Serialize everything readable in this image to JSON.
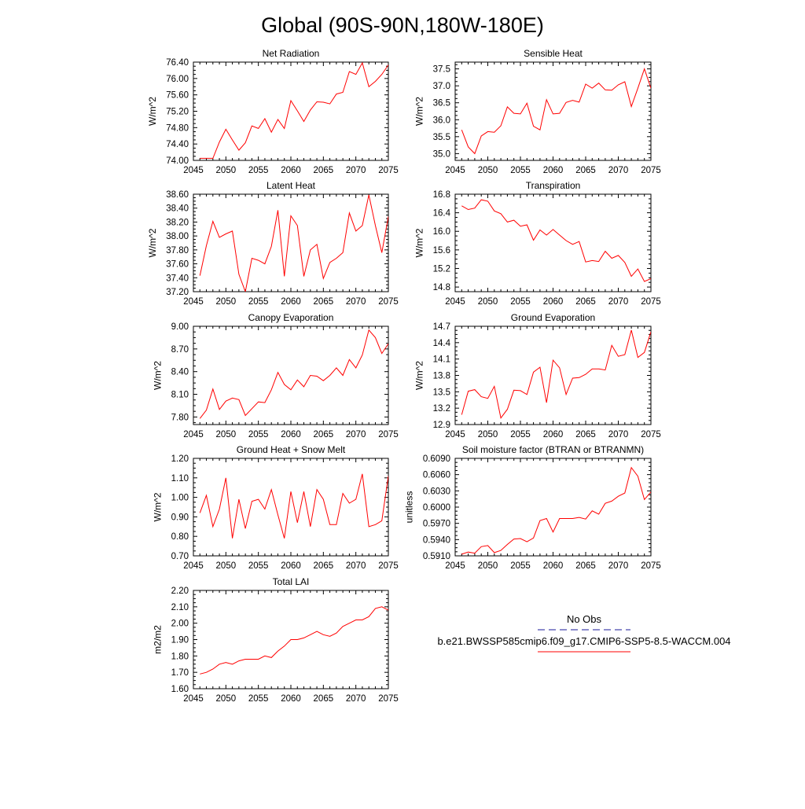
{
  "figure": {
    "title": "Global (90S-90N,180W-180E)"
  },
  "legend": {
    "obs_label": "No Obs",
    "obs_color": "#1a1a9a",
    "model_label": "b.e21.BWSSP585cmip6.f09_g17.CMIP6-SSP5-8.5-WACCM.004",
    "model_color": "#ff0000"
  },
  "chart_data": [
    {
      "type": "line",
      "title": "Net Radiation",
      "ylabel": "W/m^2",
      "xlim": [
        2045,
        2075
      ],
      "ylim": [
        74.0,
        76.4
      ],
      "xticks": [
        2045,
        2050,
        2055,
        2060,
        2065,
        2070,
        2075
      ],
      "yticks": [
        "74.00",
        "74.40",
        "74.80",
        "75.20",
        "75.60",
        "76.00",
        "76.40"
      ],
      "x": [
        2046,
        2047,
        2048,
        2049,
        2050,
        2051,
        2052,
        2053,
        2054,
        2055,
        2056,
        2057,
        2058,
        2059,
        2060,
        2061,
        2062,
        2063,
        2064,
        2065,
        2066,
        2067,
        2068,
        2069,
        2070,
        2071,
        2072,
        2073,
        2074,
        2075
      ],
      "series": [
        {
          "name": "b.e21.BWSSP585cmip6.f09_g17.CMIP6-SSP5-8.5-WACCM.004",
          "values": [
            74.05,
            74.05,
            74.05,
            74.45,
            74.76,
            74.5,
            74.25,
            74.43,
            74.84,
            74.78,
            75.02,
            74.69,
            75.0,
            74.78,
            75.46,
            75.21,
            74.95,
            75.23,
            75.43,
            75.42,
            75.38,
            75.62,
            75.66,
            76.17,
            76.1,
            76.38,
            75.8,
            75.93,
            76.1,
            76.33
          ]
        }
      ]
    },
    {
      "type": "line",
      "title": "Sensible Heat",
      "ylabel": "W/m^2",
      "xlim": [
        2045,
        2075
      ],
      "ylim": [
        34.8,
        37.7
      ],
      "xticks": [
        2045,
        2050,
        2055,
        2060,
        2065,
        2070,
        2075
      ],
      "yticks": [
        "35.0",
        "35.5",
        "36.0",
        "36.5",
        "37.0",
        "37.5"
      ],
      "x": [
        2046,
        2047,
        2048,
        2049,
        2050,
        2051,
        2052,
        2053,
        2054,
        2055,
        2056,
        2057,
        2058,
        2059,
        2060,
        2061,
        2062,
        2063,
        2064,
        2065,
        2066,
        2067,
        2068,
        2069,
        2070,
        2071,
        2072,
        2073,
        2074,
        2075
      ],
      "series": [
        {
          "name": "b.e21.BWSSP585cmip6.f09_g17.CMIP6-SSP5-8.5-WACCM.004",
          "values": [
            35.7,
            35.2,
            35.0,
            35.52,
            35.65,
            35.63,
            35.82,
            36.38,
            36.19,
            36.17,
            36.49,
            35.81,
            35.7,
            36.59,
            36.17,
            36.19,
            36.51,
            36.57,
            36.52,
            37.05,
            36.93,
            37.08,
            36.88,
            36.87,
            37.03,
            37.12,
            36.39,
            36.93,
            37.5,
            36.93
          ]
        }
      ]
    },
    {
      "type": "line",
      "title": "Latent Heat",
      "ylabel": "W/m^2",
      "xlim": [
        2045,
        2075
      ],
      "ylim": [
        37.2,
        38.6
      ],
      "xticks": [
        2045,
        2050,
        2055,
        2060,
        2065,
        2070,
        2075
      ],
      "yticks": [
        "37.20",
        "37.40",
        "37.60",
        "37.80",
        "38.00",
        "38.20",
        "38.40",
        "38.60"
      ],
      "x": [
        2046,
        2047,
        2048,
        2049,
        2050,
        2051,
        2052,
        2053,
        2054,
        2055,
        2056,
        2057,
        2058,
        2059,
        2060,
        2061,
        2062,
        2063,
        2064,
        2065,
        2066,
        2067,
        2068,
        2069,
        2070,
        2071,
        2072,
        2073,
        2074,
        2075
      ],
      "series": [
        {
          "name": "b.e21.BWSSP585cmip6.f09_g17.CMIP6-SSP5-8.5-WACCM.004",
          "values": [
            37.43,
            37.86,
            38.21,
            37.98,
            38.03,
            38.07,
            37.45,
            37.2,
            37.68,
            37.65,
            37.6,
            37.85,
            38.37,
            37.42,
            38.29,
            38.15,
            37.42,
            37.8,
            37.88,
            37.39,
            37.62,
            37.68,
            37.76,
            38.33,
            38.07,
            38.15,
            38.59,
            38.15,
            37.76,
            38.28
          ]
        }
      ]
    },
    {
      "type": "line",
      "title": "Transpiration",
      "ylabel": "W/m^2",
      "xlim": [
        2045,
        2075
      ],
      "ylim": [
        14.7,
        16.8
      ],
      "xticks": [
        2045,
        2050,
        2055,
        2060,
        2065,
        2070,
        2075
      ],
      "yticks": [
        "14.8",
        "15.2",
        "15.6",
        "16.0",
        "16.4",
        "16.8"
      ],
      "x": [
        2046,
        2047,
        2048,
        2049,
        2050,
        2051,
        2052,
        2053,
        2054,
        2055,
        2056,
        2057,
        2058,
        2059,
        2060,
        2061,
        2062,
        2063,
        2064,
        2065,
        2066,
        2067,
        2068,
        2069,
        2070,
        2071,
        2072,
        2073,
        2074,
        2075
      ],
      "series": [
        {
          "name": "b.e21.BWSSP585cmip6.f09_g17.CMIP6-SSP5-8.5-WACCM.004",
          "values": [
            16.55,
            16.47,
            16.5,
            16.68,
            16.65,
            16.44,
            16.38,
            16.2,
            16.24,
            16.11,
            16.14,
            15.81,
            16.03,
            15.92,
            16.04,
            15.92,
            15.8,
            15.72,
            15.78,
            15.34,
            15.37,
            15.35,
            15.57,
            15.42,
            15.48,
            15.33,
            15.03,
            15.19,
            14.92,
            14.98
          ]
        }
      ]
    },
    {
      "type": "line",
      "title": "Canopy Evaporation",
      "ylabel": "W/m^2",
      "xlim": [
        2045,
        2075
      ],
      "ylim": [
        7.7,
        9.0
      ],
      "xticks": [
        2045,
        2050,
        2055,
        2060,
        2065,
        2070,
        2075
      ],
      "yticks": [
        "7.80",
        "8.10",
        "8.40",
        "8.70",
        "9.00"
      ],
      "x": [
        2046,
        2047,
        2048,
        2049,
        2050,
        2051,
        2052,
        2053,
        2054,
        2055,
        2056,
        2057,
        2058,
        2059,
        2060,
        2061,
        2062,
        2063,
        2064,
        2065,
        2066,
        2067,
        2068,
        2069,
        2070,
        2071,
        2072,
        2073,
        2074,
        2075
      ],
      "series": [
        {
          "name": "b.e21.BWSSP585cmip6.f09_g17.CMIP6-SSP5-8.5-WACCM.004",
          "values": [
            7.78,
            7.89,
            8.17,
            7.9,
            8.01,
            8.05,
            8.03,
            7.82,
            7.91,
            8.0,
            7.99,
            8.16,
            8.39,
            8.23,
            8.16,
            8.29,
            8.2,
            8.35,
            8.34,
            8.28,
            8.35,
            8.45,
            8.35,
            8.56,
            8.45,
            8.62,
            8.95,
            8.85,
            8.64,
            8.77
          ]
        }
      ]
    },
    {
      "type": "line",
      "title": "Ground Evaporation",
      "ylabel": "W/m^2",
      "xlim": [
        2045,
        2075
      ],
      "ylim": [
        12.9,
        14.7
      ],
      "xticks": [
        2045,
        2050,
        2055,
        2060,
        2065,
        2070,
        2075
      ],
      "yticks": [
        "12.9",
        "13.2",
        "13.5",
        "13.8",
        "14.1",
        "14.4",
        "14.7"
      ],
      "x": [
        2046,
        2047,
        2048,
        2049,
        2050,
        2051,
        2052,
        2053,
        2054,
        2055,
        2056,
        2057,
        2058,
        2059,
        2060,
        2061,
        2062,
        2063,
        2064,
        2065,
        2066,
        2067,
        2068,
        2069,
        2070,
        2071,
        2072,
        2073,
        2074,
        2075
      ],
      "series": [
        {
          "name": "b.e21.BWSSP585cmip6.f09_g17.CMIP6-SSP5-8.5-WACCM.004",
          "values": [
            13.08,
            13.51,
            13.54,
            13.41,
            13.38,
            13.6,
            13.02,
            13.18,
            13.53,
            13.52,
            13.45,
            13.86,
            13.95,
            13.3,
            14.08,
            13.94,
            13.45,
            13.75,
            13.76,
            13.82,
            13.92,
            13.92,
            13.9,
            14.35,
            14.15,
            14.18,
            14.63,
            14.13,
            14.22,
            14.6
          ]
        }
      ]
    },
    {
      "type": "line",
      "title": "Ground Heat + Snow Melt",
      "ylabel": "W/m^2",
      "xlim": [
        2045,
        2075
      ],
      "ylim": [
        0.7,
        1.2
      ],
      "xticks": [
        2045,
        2050,
        2055,
        2060,
        2065,
        2070,
        2075
      ],
      "yticks": [
        "0.70",
        "0.80",
        "0.90",
        "1.00",
        "1.10",
        "1.20"
      ],
      "x": [
        2046,
        2047,
        2048,
        2049,
        2050,
        2051,
        2052,
        2053,
        2054,
        2055,
        2056,
        2057,
        2058,
        2059,
        2060,
        2061,
        2062,
        2063,
        2064,
        2065,
        2066,
        2067,
        2068,
        2069,
        2070,
        2071,
        2072,
        2073,
        2074,
        2075
      ],
      "series": [
        {
          "name": "b.e21.BWSSP585cmip6.f09_g17.CMIP6-SSP5-8.5-WACCM.004",
          "values": [
            0.92,
            1.01,
            0.85,
            0.94,
            1.1,
            0.79,
            0.99,
            0.84,
            0.98,
            0.99,
            0.94,
            1.04,
            0.91,
            0.79,
            1.03,
            0.87,
            1.03,
            0.85,
            1.04,
            0.99,
            0.86,
            0.86,
            1.02,
            0.97,
            0.99,
            1.12,
            0.85,
            0.86,
            0.88,
            1.11
          ]
        }
      ]
    },
    {
      "type": "line",
      "title": "Soil moisture factor (BTRAN or BTRANMN)",
      "ylabel": "unitless",
      "xlim": [
        2045,
        2075
      ],
      "ylim": [
        0.591,
        0.609
      ],
      "xticks": [
        2045,
        2050,
        2055,
        2060,
        2065,
        2070,
        2075
      ],
      "yticks": [
        "0.5910",
        "0.5940",
        "0.5970",
        "0.6000",
        "0.6030",
        "0.6060",
        "0.6090"
      ],
      "x": [
        2046,
        2047,
        2048,
        2049,
        2050,
        2051,
        2052,
        2053,
        2054,
        2055,
        2056,
        2057,
        2058,
        2059,
        2060,
        2061,
        2062,
        2063,
        2064,
        2065,
        2066,
        2067,
        2068,
        2069,
        2070,
        2071,
        2072,
        2073,
        2074,
        2075
      ],
      "series": [
        {
          "name": "b.e21.BWSSP585cmip6.f09_g17.CMIP6-SSP5-8.5-WACCM.004",
          "values": [
            0.5913,
            0.5917,
            0.5915,
            0.5927,
            0.5929,
            0.5916,
            0.592,
            0.5931,
            0.5941,
            0.5942,
            0.5936,
            0.5943,
            0.5975,
            0.5979,
            0.5954,
            0.5979,
            0.5979,
            0.5979,
            0.5981,
            0.5978,
            0.5993,
            0.5987,
            0.6007,
            0.6011,
            0.602,
            0.6026,
            0.6073,
            0.6057,
            0.6014,
            0.6028
          ]
        }
      ]
    },
    {
      "type": "line",
      "title": "Total LAI",
      "ylabel": "m2/m2",
      "xlim": [
        2045,
        2075
      ],
      "ylim": [
        1.6,
        2.2
      ],
      "xticks": [
        2045,
        2050,
        2055,
        2060,
        2065,
        2070,
        2075
      ],
      "yticks": [
        "1.60",
        "1.70",
        "1.80",
        "1.90",
        "2.00",
        "2.10",
        "2.20"
      ],
      "x": [
        2046,
        2047,
        2048,
        2049,
        2050,
        2051,
        2052,
        2053,
        2054,
        2055,
        2056,
        2057,
        2058,
        2059,
        2060,
        2061,
        2062,
        2063,
        2064,
        2065,
        2066,
        2067,
        2068,
        2069,
        2070,
        2071,
        2072,
        2073,
        2074,
        2075
      ],
      "series": [
        {
          "name": "b.e21.BWSSP585cmip6.f09_g17.CMIP6-SSP5-8.5-WACCM.004",
          "values": [
            1.69,
            1.7,
            1.72,
            1.75,
            1.76,
            1.75,
            1.77,
            1.78,
            1.78,
            1.78,
            1.8,
            1.79,
            1.83,
            1.86,
            1.9,
            1.9,
            1.91,
            1.93,
            1.95,
            1.93,
            1.92,
            1.94,
            1.98,
            2.0,
            2.02,
            2.02,
            2.04,
            2.09,
            2.1,
            2.08
          ]
        }
      ]
    }
  ]
}
